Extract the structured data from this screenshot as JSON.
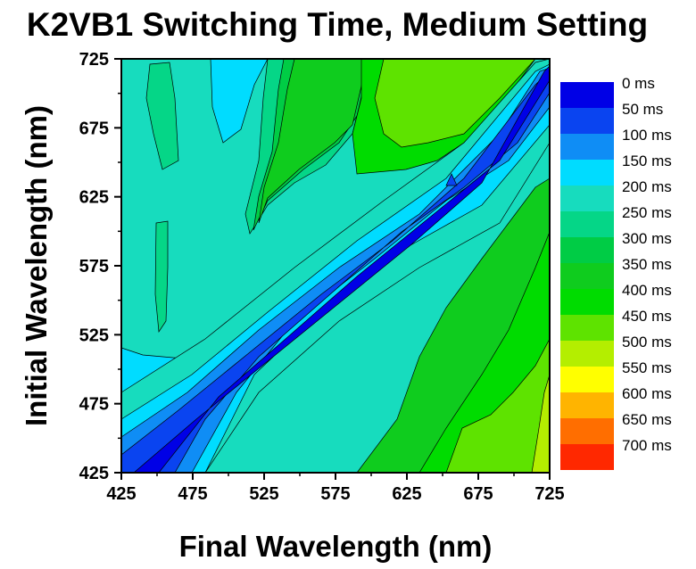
{
  "chart_data": {
    "type": "heatmap",
    "subtype": "filled-contour",
    "title": "K2VB1 Switching Time, Medium Setting",
    "xlabel": "Final Wavelength (nm)",
    "ylabel": "Initial Wavelength (nm)",
    "xlim": [
      425,
      725
    ],
    "ylim": [
      425,
      725
    ],
    "x_ticks": [
      "425",
      "475",
      "525",
      "575",
      "625",
      "675",
      "725"
    ],
    "y_ticks": [
      "425",
      "475",
      "525",
      "575",
      "625",
      "675",
      "725"
    ],
    "legend": {
      "placement": "right",
      "levels": [
        {
          "label": "0 ms",
          "color": "#0000e6"
        },
        {
          "label": "50 ms",
          "color": "#0a44f0"
        },
        {
          "label": "100 ms",
          "color": "#0f8df5"
        },
        {
          "label": "150 ms",
          "color": "#00dcff"
        },
        {
          "label": "200 ms",
          "color": "#17dcbe"
        },
        {
          "label": "250 ms",
          "color": "#05d687"
        },
        {
          "label": "300 ms",
          "color": "#00cc45"
        },
        {
          "label": "350 ms",
          "color": "#0fcc1e"
        },
        {
          "label": "400 ms",
          "color": "#00dc00"
        },
        {
          "label": "450 ms",
          "color": "#5ee300"
        },
        {
          "label": "500 ms",
          "color": "#b4ee00"
        },
        {
          "label": "550 ms",
          "color": "#ffff00"
        },
        {
          "label": "600 ms",
          "color": "#ffb400"
        },
        {
          "label": "650 ms",
          "color": "#ff6e00"
        },
        {
          "label": "700 ms",
          "color": "#ff2800"
        }
      ]
    }
  }
}
